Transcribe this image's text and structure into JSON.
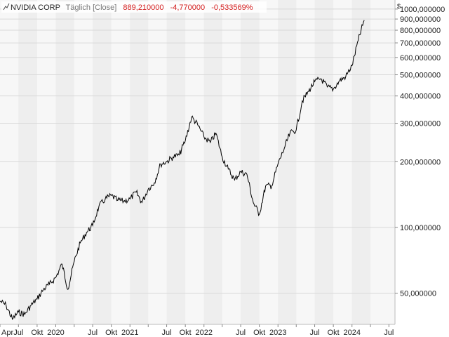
{
  "header": {
    "chart_icon": "line-chart-icon",
    "name": "NVIDIA CORP",
    "period": "Täglich [Close]",
    "last": "889,210000",
    "change": "-4,770000",
    "change_pct": "-0,533569%"
  },
  "colors": {
    "negative": "#d42020",
    "line": "#000000",
    "band": "#eeeeee",
    "grid": "#d8d8d8"
  },
  "chart_data": {
    "type": "line",
    "title": "NVIDIA CORP",
    "currency_unit": "$",
    "y_scale": "log",
    "ylim": [
      36,
      1100
    ],
    "xlim": [
      "2019-04-01",
      "2024-07-31"
    ],
    "grid": true,
    "y_ticks": [
      {
        "value": 50,
        "label": "50,000000"
      },
      {
        "value": 100,
        "label": "100,000000"
      },
      {
        "value": 200,
        "label": "200,000000"
      },
      {
        "value": 300,
        "label": "300,000000"
      },
      {
        "value": 400,
        "label": "400,000000"
      },
      {
        "value": 500,
        "label": "500,000000"
      },
      {
        "value": 600,
        "label": "600,000000"
      },
      {
        "value": 700,
        "label": "700,000000"
      },
      {
        "value": 800,
        "label": "800,000000"
      },
      {
        "value": 900,
        "label": "900,000000"
      },
      {
        "value": 1000,
        "label": "1000,000000"
      }
    ],
    "x_ticks": [
      {
        "date": "2019-04-01",
        "label": "Apr"
      },
      {
        "date": "2019-07-01",
        "label": "Jul"
      },
      {
        "date": "2019-10-01",
        "label": "Okt"
      },
      {
        "date": "2020-01-01",
        "label": "2020"
      },
      {
        "date": "2020-04-01",
        "label": "Apr"
      },
      {
        "date": "2020-07-01",
        "label": "Jul"
      },
      {
        "date": "2020-10-01",
        "label": "Okt"
      },
      {
        "date": "2021-01-01",
        "label": "2021"
      },
      {
        "date": "2021-04-01",
        "label": "Apr"
      },
      {
        "date": "2021-07-01",
        "label": "Jul"
      },
      {
        "date": "2021-10-01",
        "label": "Okt"
      },
      {
        "date": "2022-01-01",
        "label": "2022"
      },
      {
        "date": "2022-04-01",
        "label": "Apr"
      },
      {
        "date": "2022-07-01",
        "label": "Jul"
      },
      {
        "date": "2022-10-01",
        "label": "Okt"
      },
      {
        "date": "2023-01-01",
        "label": "2023"
      },
      {
        "date": "2023-04-01",
        "label": "Apr"
      },
      {
        "date": "2023-07-01",
        "label": "Jul"
      },
      {
        "date": "2023-10-01",
        "label": "Okt"
      },
      {
        "date": "2024-01-01",
        "label": "2024"
      },
      {
        "date": "2024-04-01",
        "label": "Apr"
      },
      {
        "date": "2024-07-01",
        "label": "Jul"
      }
    ],
    "series": [
      {
        "values": [
          [
            "2019-04-01",
            46
          ],
          [
            "2019-05-01",
            44
          ],
          [
            "2019-06-01",
            38
          ],
          [
            "2019-07-01",
            41
          ],
          [
            "2019-08-01",
            40
          ],
          [
            "2019-09-01",
            44
          ],
          [
            "2019-10-01",
            47
          ],
          [
            "2019-11-01",
            52
          ],
          [
            "2019-12-01",
            55
          ],
          [
            "2020-01-01",
            59
          ],
          [
            "2020-02-01",
            68
          ],
          [
            "2020-03-01",
            52
          ],
          [
            "2020-04-01",
            70
          ],
          [
            "2020-05-01",
            85
          ],
          [
            "2020-06-01",
            95
          ],
          [
            "2020-07-01",
            102
          ],
          [
            "2020-08-01",
            125
          ],
          [
            "2020-09-01",
            135
          ],
          [
            "2020-10-01",
            140
          ],
          [
            "2020-11-01",
            133
          ],
          [
            "2020-12-01",
            132
          ],
          [
            "2021-01-01",
            135
          ],
          [
            "2021-02-01",
            145
          ],
          [
            "2021-03-01",
            130
          ],
          [
            "2021-04-01",
            150
          ],
          [
            "2021-05-01",
            160
          ],
          [
            "2021-06-01",
            195
          ],
          [
            "2021-07-01",
            200
          ],
          [
            "2021-08-01",
            210
          ],
          [
            "2021-09-01",
            215
          ],
          [
            "2021-10-01",
            250
          ],
          [
            "2021-11-01",
            320
          ],
          [
            "2021-12-01",
            295
          ],
          [
            "2022-01-01",
            260
          ],
          [
            "2022-02-01",
            245
          ],
          [
            "2022-03-01",
            270
          ],
          [
            "2022-04-01",
            210
          ],
          [
            "2022-05-01",
            185
          ],
          [
            "2022-06-01",
            165
          ],
          [
            "2022-07-01",
            180
          ],
          [
            "2022-08-01",
            175
          ],
          [
            "2022-09-01",
            130
          ],
          [
            "2022-10-01",
            115
          ],
          [
            "2022-11-01",
            155
          ],
          [
            "2022-12-01",
            155
          ],
          [
            "2023-01-01",
            195
          ],
          [
            "2023-02-01",
            230
          ],
          [
            "2023-03-01",
            270
          ],
          [
            "2023-04-01",
            280
          ],
          [
            "2023-05-01",
            380
          ],
          [
            "2023-06-01",
            420
          ],
          [
            "2023-07-01",
            465
          ],
          [
            "2023-08-01",
            480
          ],
          [
            "2023-09-01",
            440
          ],
          [
            "2023-10-01",
            430
          ],
          [
            "2023-11-01",
            470
          ],
          [
            "2023-12-01",
            490
          ],
          [
            "2024-01-01",
            550
          ],
          [
            "2024-02-01",
            720
          ],
          [
            "2024-03-01",
            889
          ]
        ]
      }
    ]
  }
}
